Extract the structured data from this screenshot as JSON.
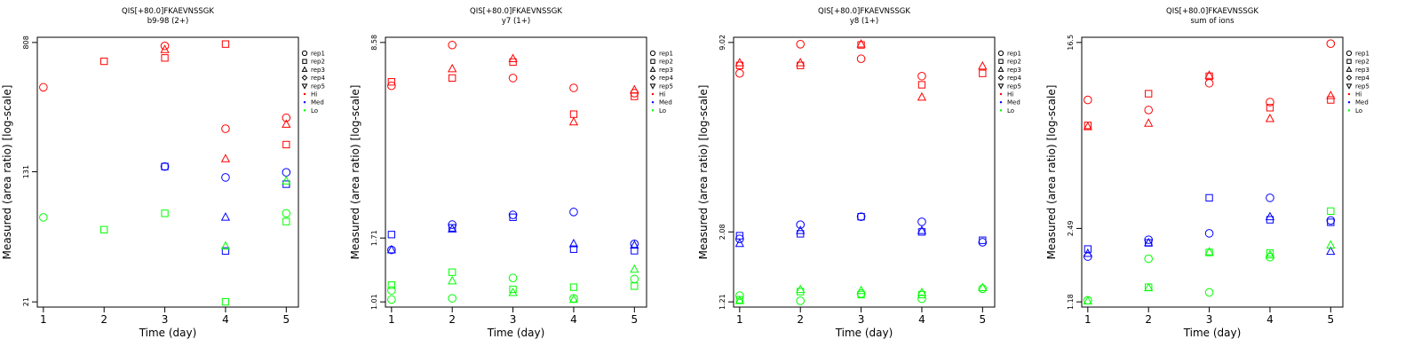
{
  "legend": {
    "entries": [
      {
        "label": "rep1",
        "symbol": "circle"
      },
      {
        "label": "rep2",
        "symbol": "square"
      },
      {
        "label": "rep3",
        "symbol": "triangle-up"
      },
      {
        "label": "rep4",
        "symbol": "diamond"
      },
      {
        "label": "rep5",
        "symbol": "triangle-down"
      },
      {
        "label": "Hi",
        "symbol": "dot",
        "color": "#ff0000"
      },
      {
        "label": "Med",
        "symbol": "dot",
        "color": "#0000ff"
      },
      {
        "label": "Lo",
        "symbol": "dot",
        "color": "#00ff00"
      }
    ]
  },
  "colors": {
    "Hi": "#ff0000",
    "Med": "#0000ff",
    "Lo": "#00ff00"
  },
  "chart_data": [
    {
      "type": "scatter",
      "title": "QIS[+80.0]FKAEVNSSGK",
      "subtitle": "b9-98 (2+)",
      "xlabel": "Time (day)",
      "ylabel": "Measured (area ratio) [log-scale]",
      "y_scale": "log",
      "x_ticks": [
        1,
        2,
        3,
        4,
        5
      ],
      "y_ticks": [
        "21",
        "131",
        "808"
      ],
      "ylim": [
        21,
        808
      ],
      "points": [
        {
          "x": 1,
          "y": 430,
          "rep": "rep1",
          "level": "Hi"
        },
        {
          "x": 1,
          "y": 69,
          "rep": "rep1",
          "level": "Lo"
        },
        {
          "x": 2,
          "y": 620,
          "rep": "rep2",
          "level": "Hi"
        },
        {
          "x": 2,
          "y": 58,
          "rep": "rep2",
          "level": "Lo"
        },
        {
          "x": 3,
          "y": 770,
          "rep": "rep1",
          "level": "Hi"
        },
        {
          "x": 3,
          "y": 730,
          "rep": "rep3",
          "level": "Hi"
        },
        {
          "x": 3,
          "y": 650,
          "rep": "rep2",
          "level": "Hi"
        },
        {
          "x": 3,
          "y": 141,
          "rep": "rep1",
          "level": "Med"
        },
        {
          "x": 3,
          "y": 141,
          "rep": "rep2",
          "level": "Med"
        },
        {
          "x": 3,
          "y": 73,
          "rep": "rep2",
          "level": "Lo"
        },
        {
          "x": 4,
          "y": 790,
          "rep": "rep2",
          "level": "Hi"
        },
        {
          "x": 4,
          "y": 240,
          "rep": "rep1",
          "level": "Hi"
        },
        {
          "x": 4,
          "y": 157,
          "rep": "rep3",
          "level": "Hi"
        },
        {
          "x": 4,
          "y": 121,
          "rep": "rep1",
          "level": "Med"
        },
        {
          "x": 4,
          "y": 69,
          "rep": "rep3",
          "level": "Med"
        },
        {
          "x": 4,
          "y": 43,
          "rep": "rep2",
          "level": "Med"
        },
        {
          "x": 4,
          "y": 46,
          "rep": "rep3",
          "level": "Lo"
        },
        {
          "x": 4,
          "y": 21,
          "rep": "rep2",
          "level": "Lo"
        },
        {
          "x": 5,
          "y": 280,
          "rep": "rep1",
          "level": "Hi"
        },
        {
          "x": 5,
          "y": 255,
          "rep": "rep3",
          "level": "Hi"
        },
        {
          "x": 5,
          "y": 192,
          "rep": "rep2",
          "level": "Hi"
        },
        {
          "x": 5,
          "y": 130,
          "rep": "rep1",
          "level": "Med"
        },
        {
          "x": 5,
          "y": 110,
          "rep": "rep2",
          "level": "Med"
        },
        {
          "x": 5,
          "y": 115,
          "rep": "rep3",
          "level": "Lo"
        },
        {
          "x": 5,
          "y": 73,
          "rep": "rep1",
          "level": "Lo"
        },
        {
          "x": 5,
          "y": 65,
          "rep": "rep2",
          "level": "Lo"
        }
      ]
    },
    {
      "type": "scatter",
      "title": "QIS[+80.0]FKAEVNSSGK",
      "subtitle": "y7 (1+)",
      "xlabel": "Time (day)",
      "ylabel": "Measured (area ratio) [log-scale]",
      "y_scale": "log",
      "x_ticks": [
        1,
        2,
        3,
        4,
        5
      ],
      "y_ticks": [
        "1.01",
        "1.71",
        "8.58"
      ],
      "ylim": [
        1.01,
        8.58
      ],
      "points": [
        {
          "x": 1,
          "y": 6.2,
          "rep": "rep2",
          "level": "Hi"
        },
        {
          "x": 1,
          "y": 6.0,
          "rep": "rep1",
          "level": "Hi"
        },
        {
          "x": 1,
          "y": 1.76,
          "rep": "rep2",
          "level": "Med"
        },
        {
          "x": 1,
          "y": 1.55,
          "rep": "rep1",
          "level": "Med"
        },
        {
          "x": 1,
          "y": 1.55,
          "rep": "rep3",
          "level": "Med"
        },
        {
          "x": 1,
          "y": 1.16,
          "rep": "rep2",
          "level": "Lo"
        },
        {
          "x": 1,
          "y": 1.11,
          "rep": "rep1",
          "level": "Lo"
        },
        {
          "x": 1,
          "y": 1.03,
          "rep": "rep1",
          "level": "Lo"
        },
        {
          "x": 2,
          "y": 8.4,
          "rep": "rep1",
          "level": "Hi"
        },
        {
          "x": 2,
          "y": 6.9,
          "rep": "rep3",
          "level": "Hi"
        },
        {
          "x": 2,
          "y": 6.4,
          "rep": "rep2",
          "level": "Hi"
        },
        {
          "x": 2,
          "y": 1.91,
          "rep": "rep1",
          "level": "Med"
        },
        {
          "x": 2,
          "y": 1.86,
          "rep": "rep2",
          "level": "Med"
        },
        {
          "x": 2,
          "y": 1.84,
          "rep": "rep3",
          "level": "Med"
        },
        {
          "x": 2,
          "y": 1.29,
          "rep": "rep2",
          "level": "Lo"
        },
        {
          "x": 2,
          "y": 1.2,
          "rep": "rep3",
          "level": "Lo"
        },
        {
          "x": 2,
          "y": 1.04,
          "rep": "rep1",
          "level": "Lo"
        },
        {
          "x": 3,
          "y": 7.5,
          "rep": "rep3",
          "level": "Hi"
        },
        {
          "x": 3,
          "y": 7.3,
          "rep": "rep2",
          "level": "Hi"
        },
        {
          "x": 3,
          "y": 6.4,
          "rep": "rep1",
          "level": "Hi"
        },
        {
          "x": 3,
          "y": 2.07,
          "rep": "rep1",
          "level": "Med"
        },
        {
          "x": 3,
          "y": 2.03,
          "rep": "rep2",
          "level": "Med"
        },
        {
          "x": 3,
          "y": 1.23,
          "rep": "rep1",
          "level": "Lo"
        },
        {
          "x": 3,
          "y": 1.12,
          "rep": "rep2",
          "level": "Lo"
        },
        {
          "x": 3,
          "y": 1.09,
          "rep": "rep3",
          "level": "Lo"
        },
        {
          "x": 4,
          "y": 5.9,
          "rep": "rep1",
          "level": "Hi"
        },
        {
          "x": 4,
          "y": 4.75,
          "rep": "rep2",
          "level": "Hi"
        },
        {
          "x": 4,
          "y": 4.45,
          "rep": "rep3",
          "level": "Hi"
        },
        {
          "x": 4,
          "y": 2.12,
          "rep": "rep1",
          "level": "Med"
        },
        {
          "x": 4,
          "y": 1.63,
          "rep": "rep3",
          "level": "Med"
        },
        {
          "x": 4,
          "y": 1.56,
          "rep": "rep2",
          "level": "Med"
        },
        {
          "x": 4,
          "y": 1.14,
          "rep": "rep2",
          "level": "Lo"
        },
        {
          "x": 4,
          "y": 1.04,
          "rep": "rep1",
          "level": "Lo"
        },
        {
          "x": 4,
          "y": 1.03,
          "rep": "rep3",
          "level": "Lo"
        },
        {
          "x": 5,
          "y": 5.8,
          "rep": "rep3",
          "level": "Hi"
        },
        {
          "x": 5,
          "y": 5.65,
          "rep": "rep1",
          "level": "Hi"
        },
        {
          "x": 5,
          "y": 5.5,
          "rep": "rep2",
          "level": "Hi"
        },
        {
          "x": 5,
          "y": 1.63,
          "rep": "rep1",
          "level": "Med"
        },
        {
          "x": 5,
          "y": 1.61,
          "rep": "rep3",
          "level": "Med"
        },
        {
          "x": 5,
          "y": 1.54,
          "rep": "rep2",
          "level": "Med"
        },
        {
          "x": 5,
          "y": 1.32,
          "rep": "rep3",
          "level": "Lo"
        },
        {
          "x": 5,
          "y": 1.22,
          "rep": "rep1",
          "level": "Lo"
        },
        {
          "x": 5,
          "y": 1.15,
          "rep": "rep2",
          "level": "Lo"
        }
      ]
    },
    {
      "type": "scatter",
      "title": "QIS[+80.0]FKAEVNSSGK",
      "subtitle": "y8 (1+)",
      "xlabel": "Time (day)",
      "ylabel": "Measured (area ratio) [log-scale]",
      "y_scale": "log",
      "x_ticks": [
        1,
        2,
        3,
        4,
        5
      ],
      "y_ticks": [
        "1.21",
        "2.08",
        "9.02"
      ],
      "ylim": [
        1.21,
        9.02
      ],
      "points": [
        {
          "x": 1,
          "y": 7.7,
          "rep": "rep3",
          "level": "Hi"
        },
        {
          "x": 1,
          "y": 7.55,
          "rep": "rep2",
          "level": "Hi"
        },
        {
          "x": 1,
          "y": 7.1,
          "rep": "rep1",
          "level": "Hi"
        },
        {
          "x": 1,
          "y": 2.02,
          "rep": "rep2",
          "level": "Med"
        },
        {
          "x": 1,
          "y": 1.97,
          "rep": "rep1",
          "level": "Med"
        },
        {
          "x": 1,
          "y": 1.9,
          "rep": "rep3",
          "level": "Med"
        },
        {
          "x": 1,
          "y": 1.27,
          "rep": "rep1",
          "level": "Lo"
        },
        {
          "x": 1,
          "y": 1.23,
          "rep": "rep2",
          "level": "Lo"
        },
        {
          "x": 1,
          "y": 1.22,
          "rep": "rep3",
          "level": "Lo"
        },
        {
          "x": 2,
          "y": 8.9,
          "rep": "rep1",
          "level": "Hi"
        },
        {
          "x": 2,
          "y": 7.7,
          "rep": "rep3",
          "level": "Hi"
        },
        {
          "x": 2,
          "y": 7.55,
          "rep": "rep2",
          "level": "Hi"
        },
        {
          "x": 2,
          "y": 2.2,
          "rep": "rep1",
          "level": "Med"
        },
        {
          "x": 2,
          "y": 2.1,
          "rep": "rep3",
          "level": "Med"
        },
        {
          "x": 2,
          "y": 2.05,
          "rep": "rep2",
          "level": "Med"
        },
        {
          "x": 2,
          "y": 1.33,
          "rep": "rep3",
          "level": "Lo"
        },
        {
          "x": 2,
          "y": 1.31,
          "rep": "rep2",
          "level": "Lo"
        },
        {
          "x": 2,
          "y": 1.22,
          "rep": "rep1",
          "level": "Lo"
        },
        {
          "x": 3,
          "y": 8.9,
          "rep": "rep3",
          "level": "Hi"
        },
        {
          "x": 3,
          "y": 8.85,
          "rep": "rep2",
          "level": "Hi"
        },
        {
          "x": 3,
          "y": 7.95,
          "rep": "rep1",
          "level": "Hi"
        },
        {
          "x": 3,
          "y": 2.34,
          "rep": "rep1",
          "level": "Med"
        },
        {
          "x": 3,
          "y": 2.34,
          "rep": "rep2",
          "level": "Med"
        },
        {
          "x": 3,
          "y": 1.32,
          "rep": "rep3",
          "level": "Lo"
        },
        {
          "x": 3,
          "y": 1.29,
          "rep": "rep1",
          "level": "Lo"
        },
        {
          "x": 3,
          "y": 1.28,
          "rep": "rep2",
          "level": "Lo"
        },
        {
          "x": 4,
          "y": 6.95,
          "rep": "rep1",
          "level": "Hi"
        },
        {
          "x": 4,
          "y": 6.5,
          "rep": "rep2",
          "level": "Hi"
        },
        {
          "x": 4,
          "y": 5.9,
          "rep": "rep3",
          "level": "Hi"
        },
        {
          "x": 4,
          "y": 2.25,
          "rep": "rep1",
          "level": "Med"
        },
        {
          "x": 4,
          "y": 2.1,
          "rep": "rep3",
          "level": "Med"
        },
        {
          "x": 4,
          "y": 2.08,
          "rep": "rep2",
          "level": "Med"
        },
        {
          "x": 4,
          "y": 1.3,
          "rep": "rep3",
          "level": "Lo"
        },
        {
          "x": 4,
          "y": 1.28,
          "rep": "rep2",
          "level": "Lo"
        },
        {
          "x": 4,
          "y": 1.24,
          "rep": "rep1",
          "level": "Lo"
        },
        {
          "x": 5,
          "y": 7.5,
          "rep": "rep3",
          "level": "Hi"
        },
        {
          "x": 5,
          "y": 7.1,
          "rep": "rep2",
          "level": "Hi"
        },
        {
          "x": 5,
          "y": 1.95,
          "rep": "rep2",
          "level": "Med"
        },
        {
          "x": 5,
          "y": 1.92,
          "rep": "rep1",
          "level": "Med"
        },
        {
          "x": 5,
          "y": 1.35,
          "rep": "rep3",
          "level": "Lo"
        },
        {
          "x": 5,
          "y": 1.34,
          "rep": "rep1",
          "level": "Lo"
        }
      ]
    },
    {
      "type": "scatter",
      "title": "QIS[+80.0]FKAEVNSSGK",
      "subtitle": "sum of ions",
      "xlabel": "Time (day)",
      "ylabel": "Measured (area ratio) [log-scale]",
      "y_scale": "log",
      "x_ticks": [
        1,
        2,
        3,
        4,
        5
      ],
      "y_ticks": [
        "1.18",
        "2.49",
        "16.5"
      ],
      "ylim": [
        1.18,
        16.5
      ],
      "points": [
        {
          "x": 1,
          "y": 9.2,
          "rep": "rep1",
          "level": "Hi"
        },
        {
          "x": 1,
          "y": 7.1,
          "rep": "rep2",
          "level": "Hi"
        },
        {
          "x": 1,
          "y": 7.0,
          "rep": "rep3",
          "level": "Hi"
        },
        {
          "x": 1,
          "y": 2.02,
          "rep": "rep2",
          "level": "Med"
        },
        {
          "x": 1,
          "y": 1.93,
          "rep": "rep3",
          "level": "Med"
        },
        {
          "x": 1,
          "y": 1.87,
          "rep": "rep1",
          "level": "Med"
        },
        {
          "x": 1,
          "y": 1.2,
          "rep": "rep1",
          "level": "Lo"
        },
        {
          "x": 1,
          "y": 1.19,
          "rep": "rep3",
          "level": "Lo"
        },
        {
          "x": 2,
          "y": 8.3,
          "rep": "rep1",
          "level": "Hi"
        },
        {
          "x": 2,
          "y": 9.8,
          "rep": "rep2",
          "level": "Hi"
        },
        {
          "x": 2,
          "y": 7.25,
          "rep": "rep3",
          "level": "Hi"
        },
        {
          "x": 2,
          "y": 2.22,
          "rep": "rep1",
          "level": "Med"
        },
        {
          "x": 2,
          "y": 2.15,
          "rep": "rep2",
          "level": "Med"
        },
        {
          "x": 2,
          "y": 2.15,
          "rep": "rep3",
          "level": "Med"
        },
        {
          "x": 2,
          "y": 1.83,
          "rep": "rep1",
          "level": "Lo"
        },
        {
          "x": 2,
          "y": 1.37,
          "rep": "rep2",
          "level": "Lo"
        },
        {
          "x": 2,
          "y": 1.36,
          "rep": "rep3",
          "level": "Lo"
        },
        {
          "x": 3,
          "y": 11.8,
          "rep": "rep3",
          "level": "Hi"
        },
        {
          "x": 3,
          "y": 11.7,
          "rep": "rep2",
          "level": "Hi"
        },
        {
          "x": 3,
          "y": 10.9,
          "rep": "rep1",
          "level": "Hi"
        },
        {
          "x": 3,
          "y": 3.4,
          "rep": "rep2",
          "level": "Med"
        },
        {
          "x": 3,
          "y": 2.37,
          "rep": "rep1",
          "level": "Med"
        },
        {
          "x": 3,
          "y": 1.96,
          "rep": "rep3",
          "level": "Lo"
        },
        {
          "x": 3,
          "y": 1.95,
          "rep": "rep2",
          "level": "Lo"
        },
        {
          "x": 3,
          "y": 1.3,
          "rep": "rep1",
          "level": "Lo"
        },
        {
          "x": 4,
          "y": 9.0,
          "rep": "rep1",
          "level": "Hi"
        },
        {
          "x": 4,
          "y": 8.5,
          "rep": "rep2",
          "level": "Hi"
        },
        {
          "x": 4,
          "y": 7.6,
          "rep": "rep3",
          "level": "Hi"
        },
        {
          "x": 4,
          "y": 3.4,
          "rep": "rep1",
          "level": "Med"
        },
        {
          "x": 4,
          "y": 2.8,
          "rep": "rep3",
          "level": "Med"
        },
        {
          "x": 4,
          "y": 2.72,
          "rep": "rep2",
          "level": "Med"
        },
        {
          "x": 4,
          "y": 1.94,
          "rep": "rep2",
          "level": "Lo"
        },
        {
          "x": 4,
          "y": 1.9,
          "rep": "rep3",
          "level": "Lo"
        },
        {
          "x": 4,
          "y": 1.86,
          "rep": "rep1",
          "level": "Lo"
        },
        {
          "x": 5,
          "y": 16.3,
          "rep": "rep1",
          "level": "Hi"
        },
        {
          "x": 5,
          "y": 9.6,
          "rep": "rep3",
          "level": "Hi"
        },
        {
          "x": 5,
          "y": 9.2,
          "rep": "rep2",
          "level": "Hi"
        },
        {
          "x": 5,
          "y": 2.7,
          "rep": "rep1",
          "level": "Med"
        },
        {
          "x": 5,
          "y": 2.65,
          "rep": "rep2",
          "level": "Med"
        },
        {
          "x": 5,
          "y": 1.97,
          "rep": "rep3",
          "level": "Med"
        },
        {
          "x": 5,
          "y": 2.97,
          "rep": "rep2",
          "level": "Lo"
        },
        {
          "x": 5,
          "y": 2.1,
          "rep": "rep3",
          "level": "Lo"
        }
      ]
    }
  ]
}
